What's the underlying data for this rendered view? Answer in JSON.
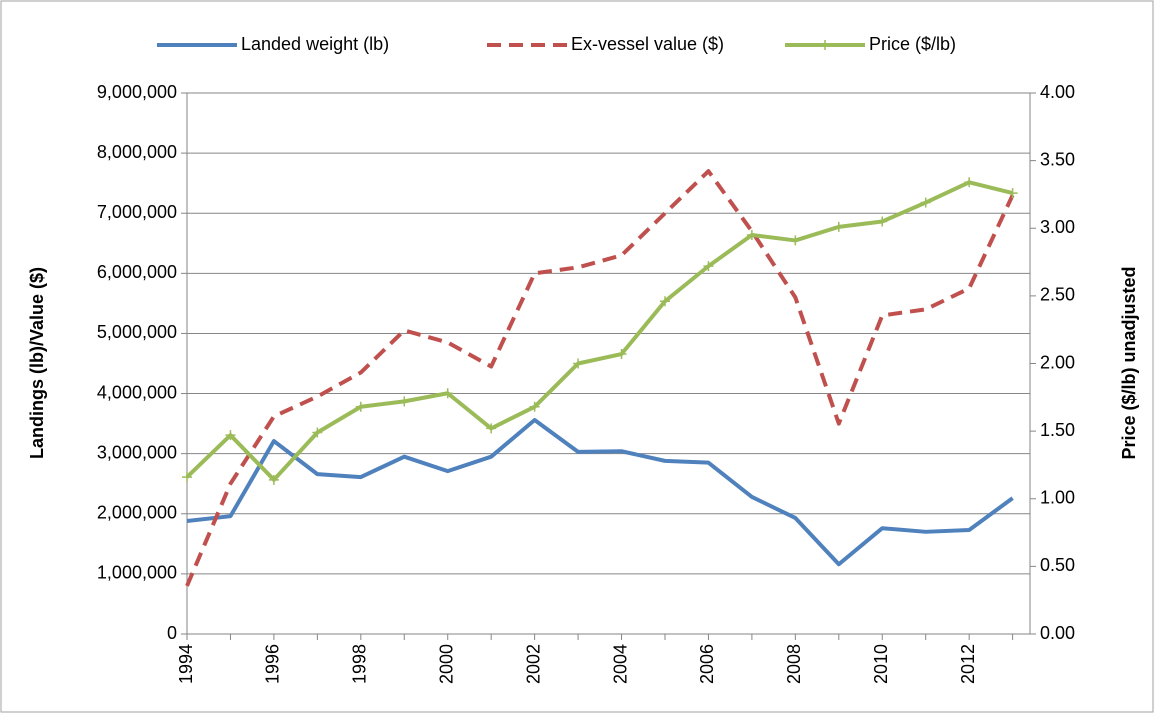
{
  "chart_data": {
    "type": "line",
    "x": [
      1994,
      1995,
      1996,
      1997,
      1998,
      1999,
      2000,
      2001,
      2002,
      2003,
      2004,
      2005,
      2006,
      2007,
      2008,
      2009,
      2010,
      2011,
      2012,
      2013
    ],
    "xlim": [
      1994,
      2013.4
    ],
    "xticks": [
      1994,
      1996,
      1998,
      2000,
      2002,
      2004,
      2006,
      2008,
      2010,
      2012
    ],
    "ylabel": "Landings (lb)/Value ($)",
    "y2label": "Price ($/lb) unadjusted",
    "ylim": [
      0,
      9000000
    ],
    "yticks": [
      0,
      {
        "value": 1000000,
        "label": "1,000,000"
      },
      {
        "value": 2000000,
        "label": "2,000,000"
      },
      {
        "value": 3000000,
        "label": "3,000,000"
      },
      {
        "value": 4000000,
        "label": "4,000,000"
      },
      {
        "value": 5000000,
        "label": "5,000,000"
      },
      {
        "value": 6000000,
        "label": "6,000,000"
      },
      {
        "value": 7000000,
        "label": "7,000,000"
      },
      {
        "value": 8000000,
        "label": "8,000,000"
      },
      {
        "value": 9000000,
        "label": "9,000,000"
      }
    ],
    "y2lim": [
      0,
      4
    ],
    "y2ticks": [
      {
        "value": 0,
        "label": "0.00"
      },
      {
        "value": 0.5,
        "label": "0.50"
      },
      {
        "value": 1,
        "label": "1.00"
      },
      {
        "value": 1.5,
        "label": "1.50"
      },
      {
        "value": 2,
        "label": "2.00"
      },
      {
        "value": 2.5,
        "label": "2.50"
      },
      {
        "value": 3,
        "label": "3.00"
      },
      {
        "value": 3.5,
        "label": "3.50"
      },
      {
        "value": 4,
        "label": "4.00"
      }
    ],
    "grid": true,
    "legend": "top",
    "series": [
      {
        "name": "Landed weight (lb)",
        "color": "#4f81bd",
        "style": "solid",
        "values": [
          1880000,
          1960000,
          3210000,
          2660000,
          2610000,
          2950000,
          2710000,
          2950000,
          3560000,
          3030000,
          3040000,
          2880000,
          2850000,
          2280000,
          1930000,
          1160000,
          1760000,
          1700000,
          1730000,
          2260000
        ]
      },
      {
        "name": "Ex-vessel value ($)",
        "color": "#c0504d",
        "style": "dashed",
        "values": [
          800000,
          2500000,
          3620000,
          3950000,
          4350000,
          5050000,
          4850000,
          4450000,
          6000000,
          6100000,
          6300000,
          7000000,
          7700000,
          6700000,
          5600000,
          3500000,
          5300000,
          5400000,
          5750000,
          7300000
        ]
      },
      {
        "name": "Price ($/lb)",
        "color": "#9bbb59",
        "style": "solid",
        "marker": "plus",
        "axis": "y2",
        "values": [
          1.16,
          1.47,
          1.14,
          1.49,
          1.68,
          1.72,
          1.78,
          1.52,
          1.68,
          2.0,
          2.07,
          2.46,
          2.72,
          2.95,
          2.91,
          3.01,
          3.05,
          3.19,
          3.34,
          3.26
        ]
      }
    ]
  }
}
